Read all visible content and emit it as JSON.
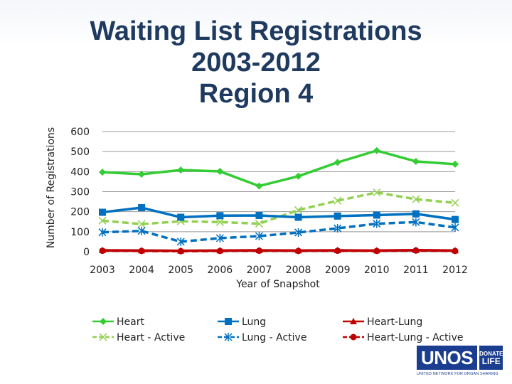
{
  "title_lines": [
    "Waiting List Registrations",
    "2003-2012",
    "Region 4"
  ],
  "chart_data": {
    "type": "line",
    "title": "Waiting List Registrations 2003-2012 Region 4",
    "xlabel": "Year of Snapshot",
    "ylabel": "Number of Registrations",
    "categories": [
      "2003",
      "2004",
      "2005",
      "2006",
      "2007",
      "2008",
      "2009",
      "2010",
      "2011",
      "2012"
    ],
    "ylim": [
      0,
      600
    ],
    "yticks": [
      0,
      100,
      200,
      300,
      400,
      500,
      600
    ],
    "grid": "horizontal",
    "legend_position": "bottom",
    "series": [
      {
        "name": "Heart",
        "color": "#33cc33",
        "dash": "solid",
        "marker": "diamond",
        "values": [
          397,
          387,
          408,
          401,
          328,
          377,
          446,
          505,
          451,
          437
        ]
      },
      {
        "name": "Heart - Active",
        "color": "#92d050",
        "dash": "dashed",
        "marker": "x",
        "values": [
          155,
          138,
          152,
          148,
          140,
          208,
          255,
          296,
          262,
          244
        ]
      },
      {
        "name": "Lung",
        "color": "#0070c0",
        "dash": "solid",
        "marker": "square",
        "values": [
          197,
          220,
          172,
          180,
          181,
          172,
          178,
          183,
          189,
          161
        ]
      },
      {
        "name": "Lung - Active",
        "color": "#0070c0",
        "dash": "dashed",
        "marker": "asterisk",
        "values": [
          97,
          104,
          50,
          68,
          78,
          96,
          117,
          140,
          148,
          121
        ]
      },
      {
        "name": "Heart-Lung",
        "color": "#c00000",
        "dash": "solid",
        "marker": "triangle",
        "values": [
          7,
          6,
          5,
          6,
          7,
          6,
          7,
          6,
          8,
          6
        ]
      },
      {
        "name": "Heart-Lung - Active",
        "color": "#c00000",
        "dash": "dashed",
        "marker": "circle",
        "values": [
          5,
          4,
          3,
          4,
          5,
          4,
          5,
          4,
          6,
          4
        ]
      }
    ]
  },
  "logo": {
    "word": "UNOS",
    "badge_top": "DONATE",
    "badge_bottom": "LIFE",
    "tagline": "UNITED NETWORK FOR ORGAN SHARING"
  }
}
